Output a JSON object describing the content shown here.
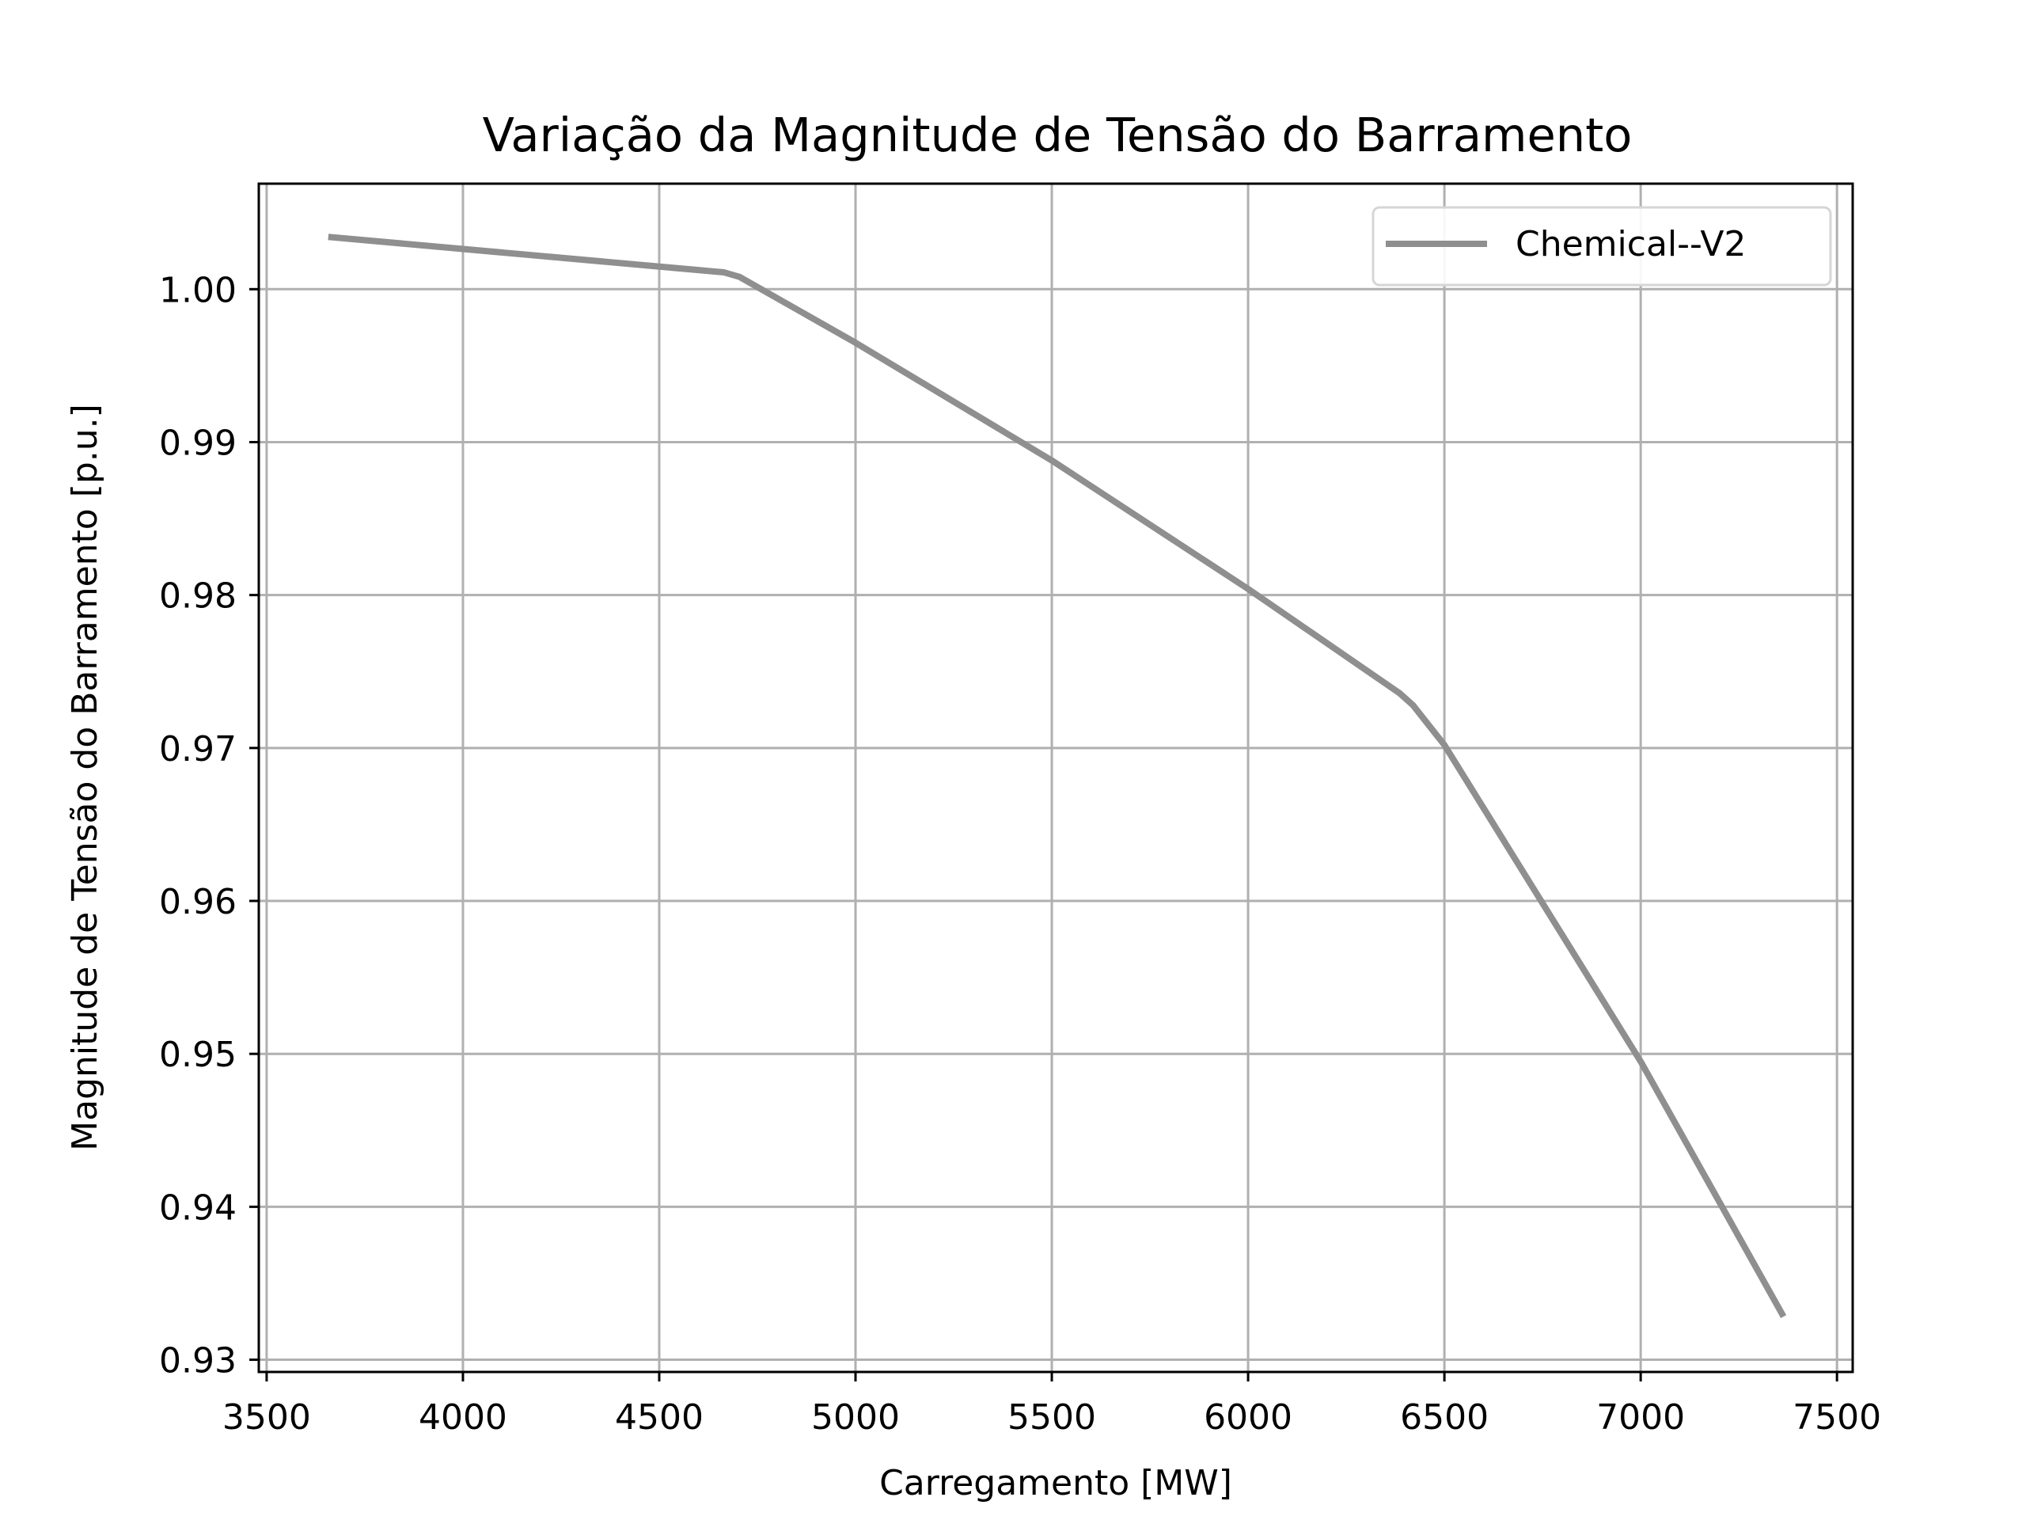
{
  "chart_data": {
    "type": "line",
    "title": "Variação da Magnitude de Tensão do Barramento",
    "xlabel": "Carregamento [MW]",
    "ylabel": "Magnitude de Tensão do Barramento [p.u.]",
    "xlim": [
      3480,
      7540
    ],
    "ylim": [
      0.9292,
      1.0069
    ],
    "x_ticks": [
      3500,
      4000,
      4500,
      5000,
      5500,
      6000,
      6500,
      7000,
      7500
    ],
    "x_tick_labels": [
      "3500",
      "4000",
      "4500",
      "5000",
      "5500",
      "6000",
      "6500",
      "7000",
      "7500"
    ],
    "y_ticks": [
      0.93,
      0.94,
      0.95,
      0.96,
      0.97,
      0.98,
      0.99,
      1.0
    ],
    "y_tick_labels": [
      "0.93",
      "0.94",
      "0.95",
      "0.96",
      "0.97",
      "0.98",
      "0.99",
      "1.00"
    ],
    "grid": true,
    "legend_position": "top-right",
    "series": [
      {
        "name": "Chemical--V2",
        "color": "#8f8f8f",
        "x": [
          3665,
          4665,
          4705,
          5000,
          5500,
          6000,
          6385,
          6420,
          6500,
          7000,
          7360
        ],
        "y": [
          1.0034,
          1.0011,
          1.0008,
          0.9965,
          0.9888,
          0.9804,
          0.9736,
          0.9728,
          0.9702,
          0.9495,
          0.933
        ]
      }
    ]
  }
}
